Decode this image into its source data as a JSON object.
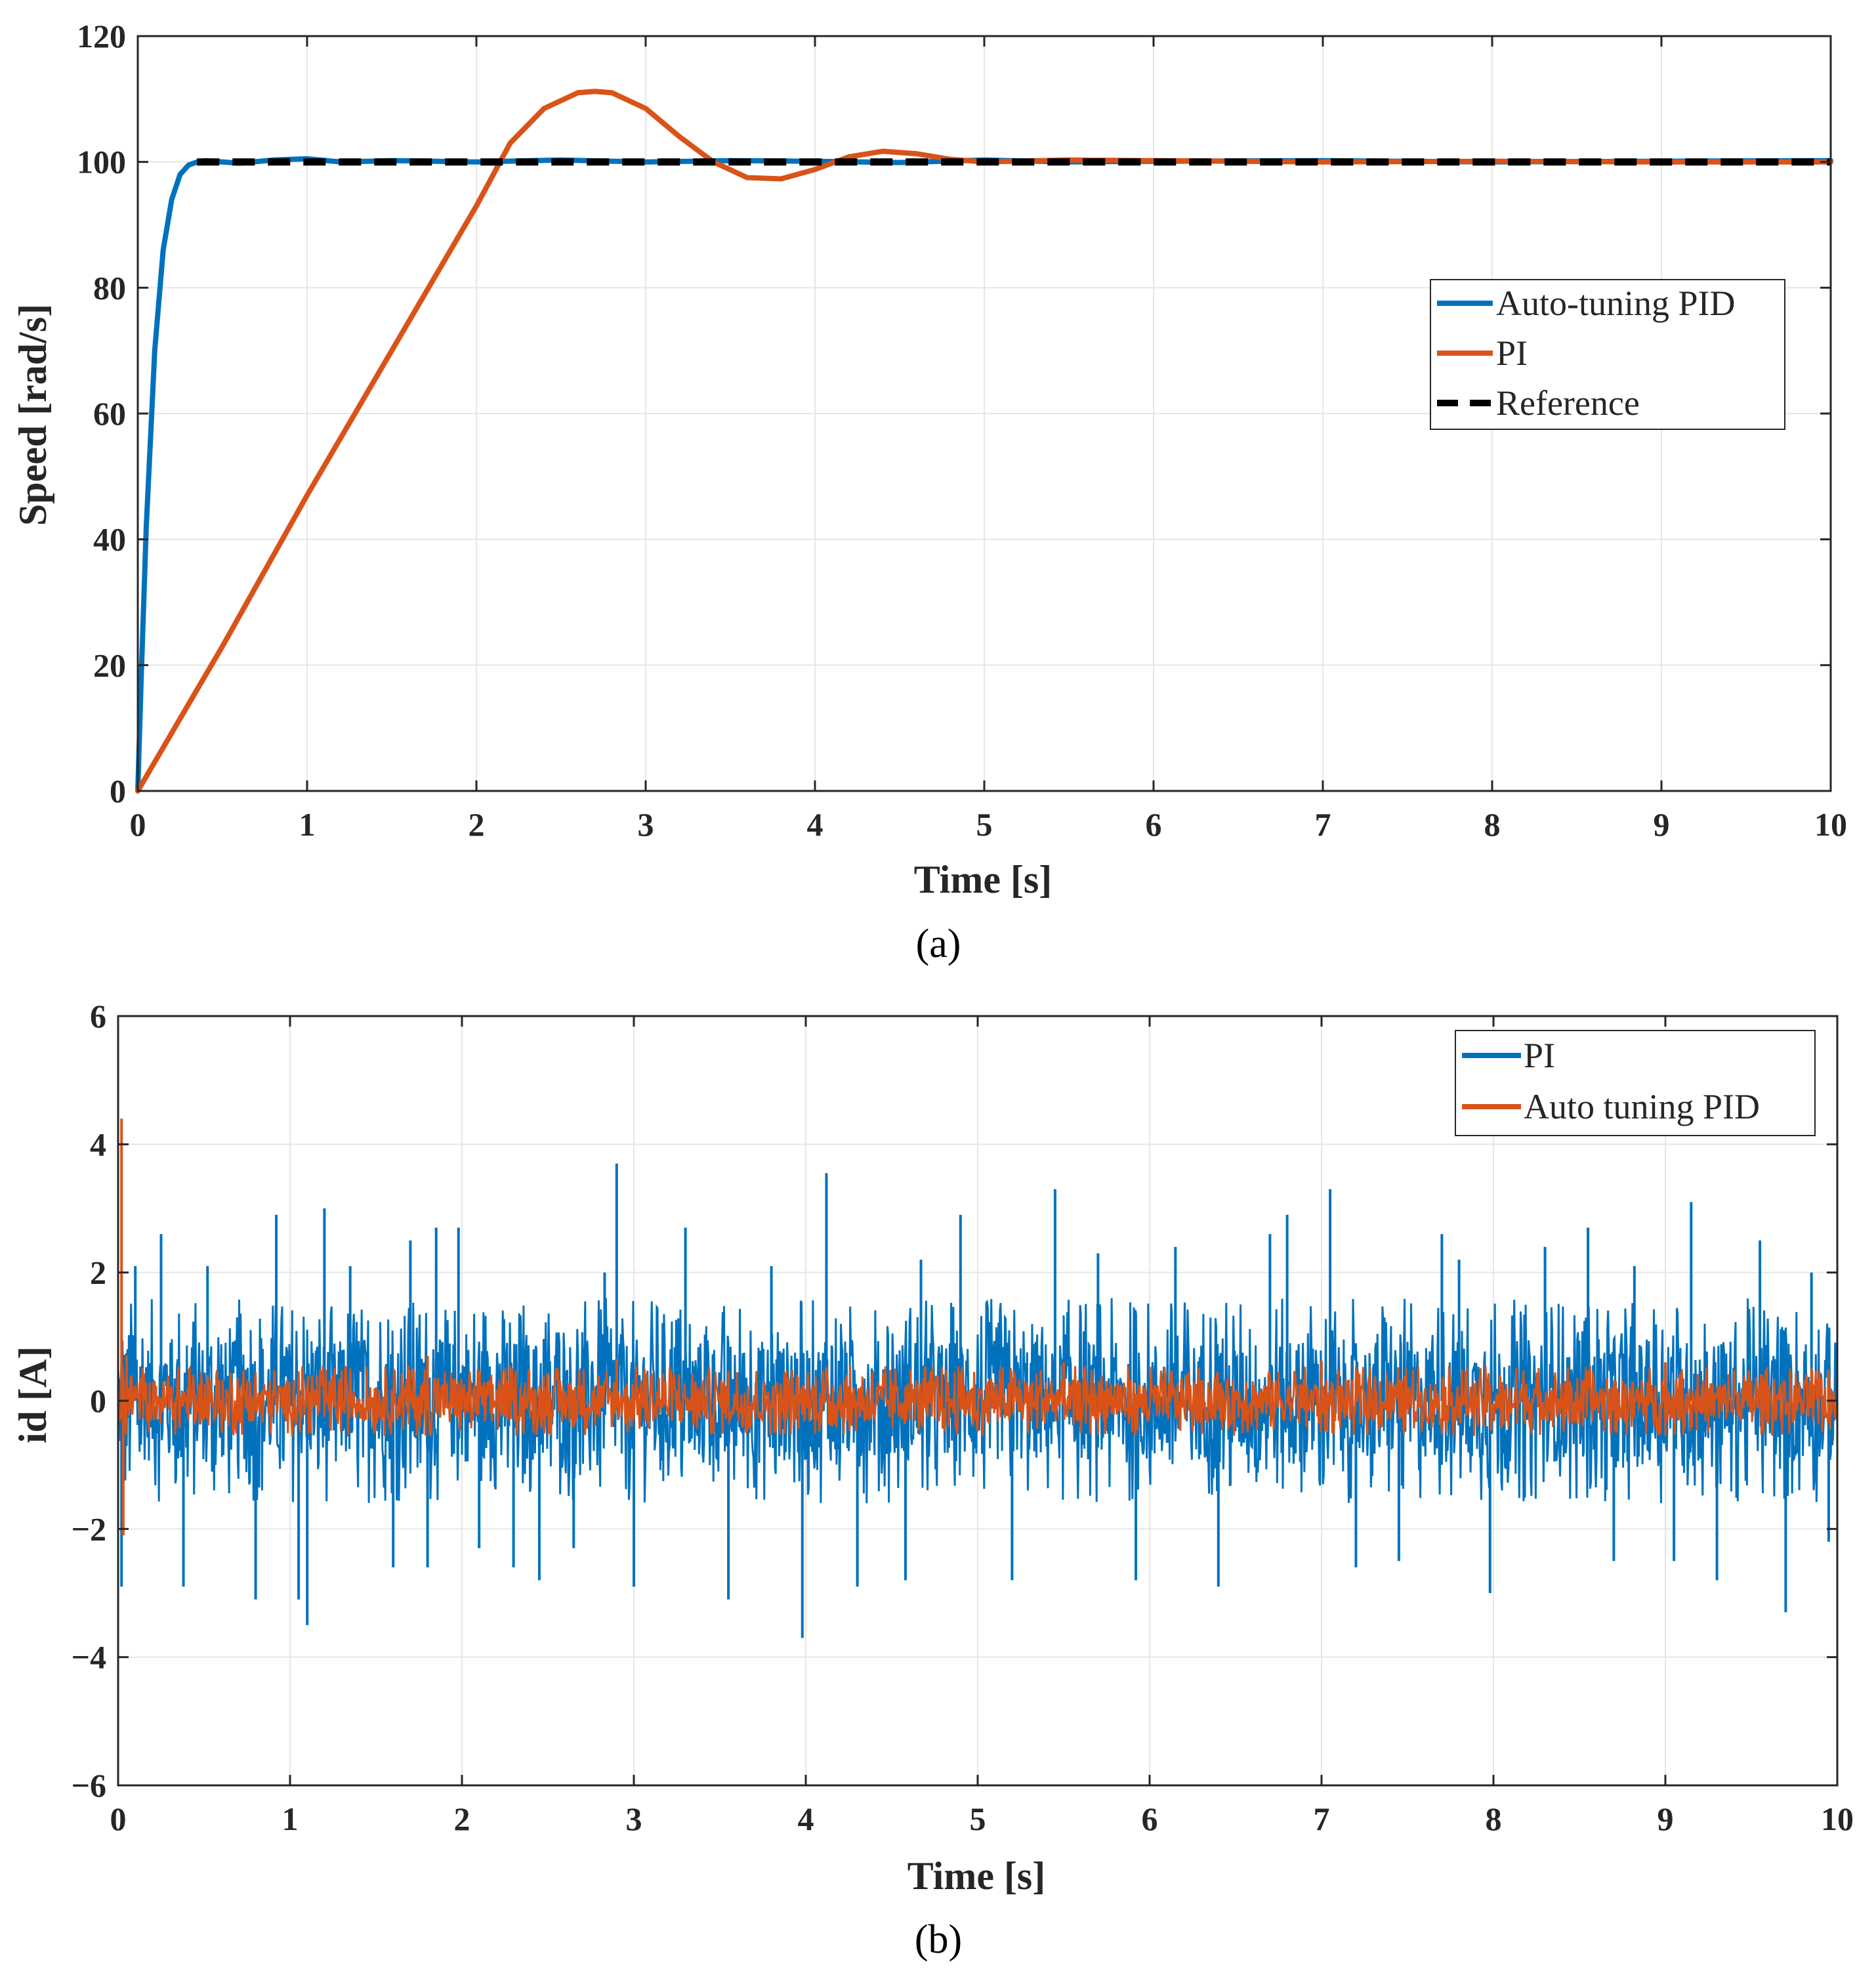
{
  "chart_data": [
    {
      "type": "line",
      "caption": "(a)",
      "xlabel": "Time [s]",
      "ylabel": "Speed [rad/s]",
      "xlim": [
        0,
        10
      ],
      "ylim": [
        0,
        120
      ],
      "xticks": [
        "0",
        "1",
        "2",
        "3",
        "4",
        "5",
        "6",
        "7",
        "8",
        "9",
        "10"
      ],
      "yticks": [
        "0",
        "20",
        "40",
        "60",
        "80",
        "100",
        "120"
      ],
      "grid": true,
      "legend_position": "center-right",
      "series": [
        {
          "name": "Auto-tuning PID",
          "color": "#0072BD",
          "style": "solid",
          "x": [
            0,
            0.02,
            0.05,
            0.1,
            0.15,
            0.2,
            0.25,
            0.3,
            0.35,
            0.4,
            0.6,
            0.8,
            1.0,
            1.2,
            1.5,
            2.0,
            2.5,
            3.0,
            3.5,
            4.0,
            4.5,
            5.0,
            5.5,
            6.0,
            7.0,
            8.0,
            9.0,
            10.0
          ],
          "y": [
            0,
            18,
            42,
            70,
            86,
            94,
            98,
            99.5,
            100,
            100.2,
            99.8,
            100.3,
            100.5,
            100,
            100.2,
            100,
            100.3,
            100,
            100.2,
            100.1,
            99.9,
            100.3,
            100,
            100.1,
            100.2,
            100,
            100.1,
            100.2
          ]
        },
        {
          "name": "PI",
          "color": "#D95319",
          "style": "solid",
          "x": [
            0,
            0.5,
            1.0,
            1.5,
            2.0,
            2.2,
            2.4,
            2.6,
            2.7,
            2.8,
            3.0,
            3.2,
            3.4,
            3.6,
            3.8,
            4.0,
            4.2,
            4.4,
            4.6,
            4.8,
            5.0,
            5.5,
            6.0,
            7.0,
            8.0,
            9.0,
            10.0
          ],
          "y": [
            0,
            23,
            47,
            70,
            93,
            103,
            108.5,
            111,
            111.2,
            111,
            108.5,
            104,
            100,
            97.5,
            97.3,
            98.8,
            100.8,
            101.7,
            101.3,
            100.4,
            100,
            100.3,
            100.2,
            100,
            100.1,
            100,
            100
          ]
        },
        {
          "name": "Reference",
          "color": "#000000",
          "style": "dashed",
          "x": [
            0.35,
            10
          ],
          "y": [
            100,
            100
          ]
        }
      ]
    },
    {
      "type": "line",
      "caption": "(b)",
      "xlabel": "Time [s]",
      "ylabel": "id [A]",
      "xlim": [
        0,
        10
      ],
      "ylim": [
        -6,
        6
      ],
      "xticks": [
        "0",
        "1",
        "2",
        "3",
        "4",
        "5",
        "6",
        "7",
        "8",
        "9",
        "10"
      ],
      "yticks": [
        "−6",
        "−4",
        "−2",
        "0",
        "2",
        "4",
        "6"
      ],
      "grid": true,
      "legend_position": "top-right",
      "series": [
        {
          "name": "PI",
          "color": "#0072BD",
          "style": "solid",
          "band": [
            -1.6,
            1.6
          ],
          "spikes": [
            [
              0.02,
              -2.9
            ],
            [
              0.1,
              2.1
            ],
            [
              0.25,
              2.6
            ],
            [
              0.38,
              -2.9
            ],
            [
              0.52,
              2.1
            ],
            [
              0.8,
              -3.1
            ],
            [
              0.92,
              2.9
            ],
            [
              1.05,
              -3.1
            ],
            [
              1.1,
              -3.5
            ],
            [
              1.2,
              3.0
            ],
            [
              1.35,
              2.1
            ],
            [
              1.6,
              -2.6
            ],
            [
              1.7,
              2.5
            ],
            [
              1.8,
              -2.6
            ],
            [
              1.85,
              2.7
            ],
            [
              1.98,
              2.7
            ],
            [
              2.1,
              -2.3
            ],
            [
              2.3,
              -2.6
            ],
            [
              2.45,
              -2.8
            ],
            [
              2.65,
              -2.3
            ],
            [
              2.83,
              2.0
            ],
            [
              2.9,
              3.7
            ],
            [
              3.0,
              -2.9
            ],
            [
              3.3,
              2.7
            ],
            [
              3.55,
              -3.1
            ],
            [
              3.8,
              2.1
            ],
            [
              3.98,
              -3.7
            ],
            [
              4.12,
              3.55
            ],
            [
              4.3,
              -2.9
            ],
            [
              4.58,
              -2.8
            ],
            [
              4.67,
              2.2
            ],
            [
              4.9,
              2.9
            ],
            [
              5.2,
              -2.8
            ],
            [
              5.45,
              3.3
            ],
            [
              5.7,
              2.3
            ],
            [
              5.92,
              -2.8
            ],
            [
              6.15,
              2.4
            ],
            [
              6.4,
              -2.9
            ],
            [
              6.7,
              2.6
            ],
            [
              6.8,
              2.9
            ],
            [
              7.05,
              3.3
            ],
            [
              7.2,
              -2.6
            ],
            [
              7.45,
              -2.5
            ],
            [
              7.7,
              2.6
            ],
            [
              7.8,
              2.2
            ],
            [
              7.98,
              -3.0
            ],
            [
              8.3,
              2.4
            ],
            [
              8.55,
              2.7
            ],
            [
              8.7,
              -2.5
            ],
            [
              8.82,
              2.1
            ],
            [
              9.05,
              -2.5
            ],
            [
              9.15,
              3.1
            ],
            [
              9.3,
              -2.8
            ],
            [
              9.55,
              2.5
            ],
            [
              9.7,
              -3.3
            ],
            [
              9.85,
              2.0
            ],
            [
              9.95,
              -2.2
            ]
          ]
        },
        {
          "name": "Auto tuning PID",
          "color": "#D95319",
          "style": "solid",
          "band": [
            -0.55,
            0.55
          ],
          "spikes": [
            [
              0.02,
              4.4
            ],
            [
              0.03,
              -2.1
            ],
            [
              0.05,
              0.7
            ],
            [
              1.8,
              0.7
            ],
            [
              2.9,
              0.65
            ],
            [
              5.5,
              0.6
            ],
            [
              7.0,
              0.62
            ],
            [
              9.0,
              0.6
            ]
          ]
        }
      ]
    }
  ]
}
